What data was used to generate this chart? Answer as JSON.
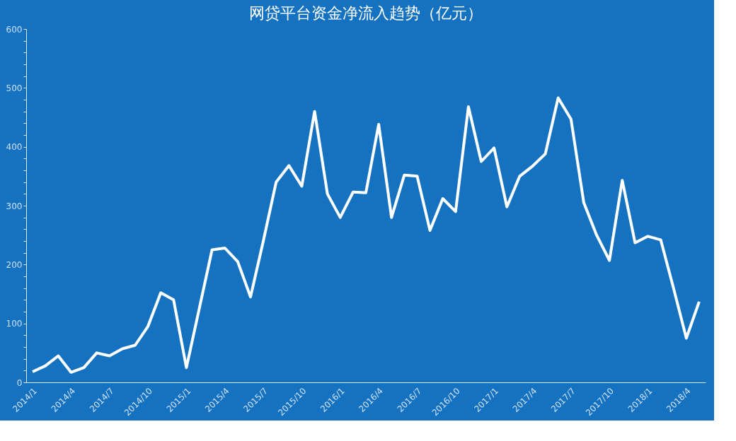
{
  "chart_data": {
    "type": "line",
    "title": "网贷平台资金净流入趋势（亿元）",
    "categories": [
      "2014/1",
      null,
      null,
      "2014/4",
      null,
      null,
      "2014/7",
      null,
      null,
      "2014/10",
      null,
      null,
      "2015/1",
      null,
      null,
      "2015/4",
      null,
      null,
      "2015/7",
      null,
      null,
      "2015/10",
      null,
      null,
      "2016/1",
      null,
      null,
      "2016/4",
      null,
      null,
      "2016/7",
      null,
      null,
      "2016/10",
      null,
      null,
      "2017/1",
      null,
      null,
      "2017/4",
      null,
      null,
      "2017/7",
      null,
      null,
      "2017/10",
      null,
      null,
      "2018/1",
      null,
      null,
      "2018/4",
      null
    ],
    "series": [
      {
        "color": "#ffffff",
        "values": [
          18,
          28,
          45,
          17,
          25,
          50,
          45,
          57,
          63,
          95,
          152,
          140,
          25,
          125,
          225,
          228,
          205,
          145,
          240,
          340,
          368,
          333,
          460,
          320,
          280,
          323,
          322,
          438,
          280,
          352,
          350,
          258,
          312,
          290,
          468,
          375,
          398,
          298,
          350,
          367,
          388,
          483,
          447,
          305,
          250,
          207,
          343,
          237,
          248,
          242,
          160,
          75,
          137
        ]
      }
    ],
    "ylim": [
      0,
      600
    ],
    "yticks": [
      0,
      {
        "value": 20,
        "label": null
      },
      {
        "value": 40,
        "label": null
      },
      {
        "value": 60,
        "label": null
      },
      {
        "value": 80,
        "label": null
      },
      100,
      {
        "value": 120,
        "label": null
      },
      {
        "value": 140,
        "label": null
      },
      {
        "value": 160,
        "label": null
      },
      {
        "value": 180,
        "label": null
      },
      200,
      {
        "value": 220,
        "label": null
      },
      {
        "value": 240,
        "label": null
      },
      {
        "value": 260,
        "label": null
      },
      {
        "value": 280,
        "label": null
      },
      300,
      {
        "value": 320,
        "label": null
      },
      {
        "value": 340,
        "label": null
      },
      {
        "value": 360,
        "label": null
      },
      {
        "value": 380,
        "label": null
      },
      400,
      {
        "value": 420,
        "label": null
      },
      {
        "value": 440,
        "label": null
      },
      {
        "value": 460,
        "label": null
      },
      {
        "value": 480,
        "label": null
      },
      500,
      {
        "value": 520,
        "label": null
      },
      {
        "value": 540,
        "label": null
      },
      {
        "value": 560,
        "label": null
      },
      {
        "value": 580,
        "label": null
      },
      600
    ],
    "grid": false,
    "marker": "none",
    "line_style": "solid"
  }
}
